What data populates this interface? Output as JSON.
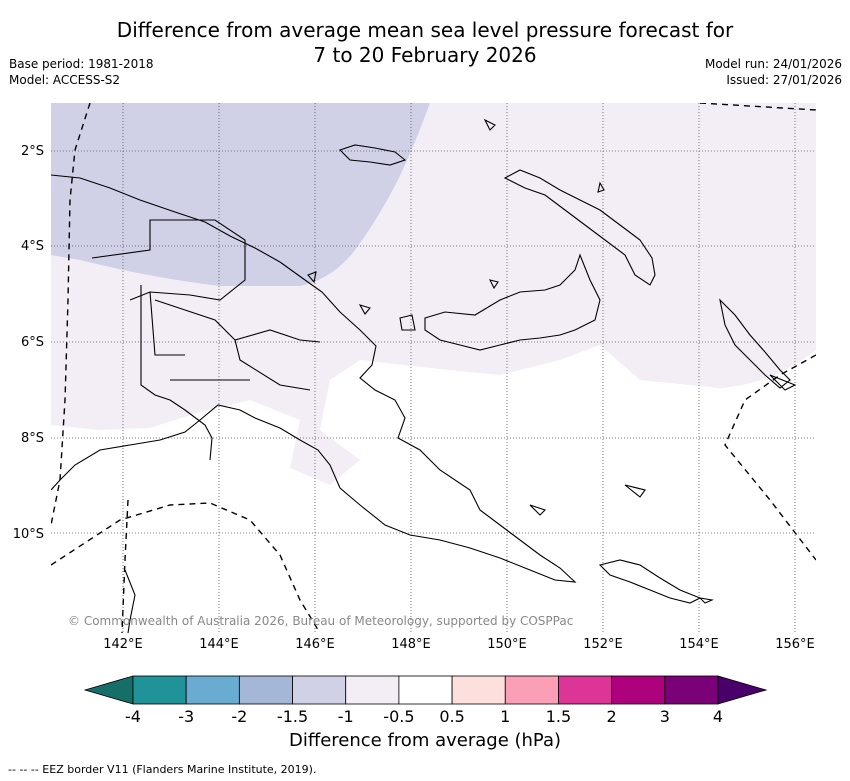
{
  "title_line1": "Difference from average mean sea level pressure forecast for",
  "title_line2": "7 to 20 February 2026",
  "base_period": "Base period: 1981-2018",
  "model": "Model: ACCESS-S2",
  "model_run": "Model run: 24/01/2026",
  "issued": "Issued: 27/01/2026",
  "lat_labels": [
    "2°S",
    "4°S",
    "6°S",
    "8°S",
    "10°S"
  ],
  "lon_labels": [
    "142°E",
    "144°E",
    "146°E",
    "148°E",
    "150°E",
    "152°E",
    "154°E",
    "156°E"
  ],
  "copyright": "© Commonwealth of Australia 2026, Bureau of Meteorology, supported by COSPPac",
  "colorbar": {
    "label": "Difference from average (hPa)",
    "ticks": [
      "-4",
      "-3",
      "-2",
      "-1.5",
      "-1",
      "-0.5",
      "0.5",
      "1",
      "1.5",
      "2",
      "3",
      "4"
    ],
    "colors": [
      "#156e68",
      "#1f9397",
      "#6aabd2",
      "#a5b7d7",
      "#d0d1e6",
      "#f3eef5",
      "#ffffff",
      "#fde0dd",
      "#fa9fb5",
      "#dd3497",
      "#ae017e",
      "#7a0177",
      "#49006a"
    ]
  },
  "eez_legend": "--  --  -- EEZ border V11 (Flanders Marine Institute, 2019)."
}
